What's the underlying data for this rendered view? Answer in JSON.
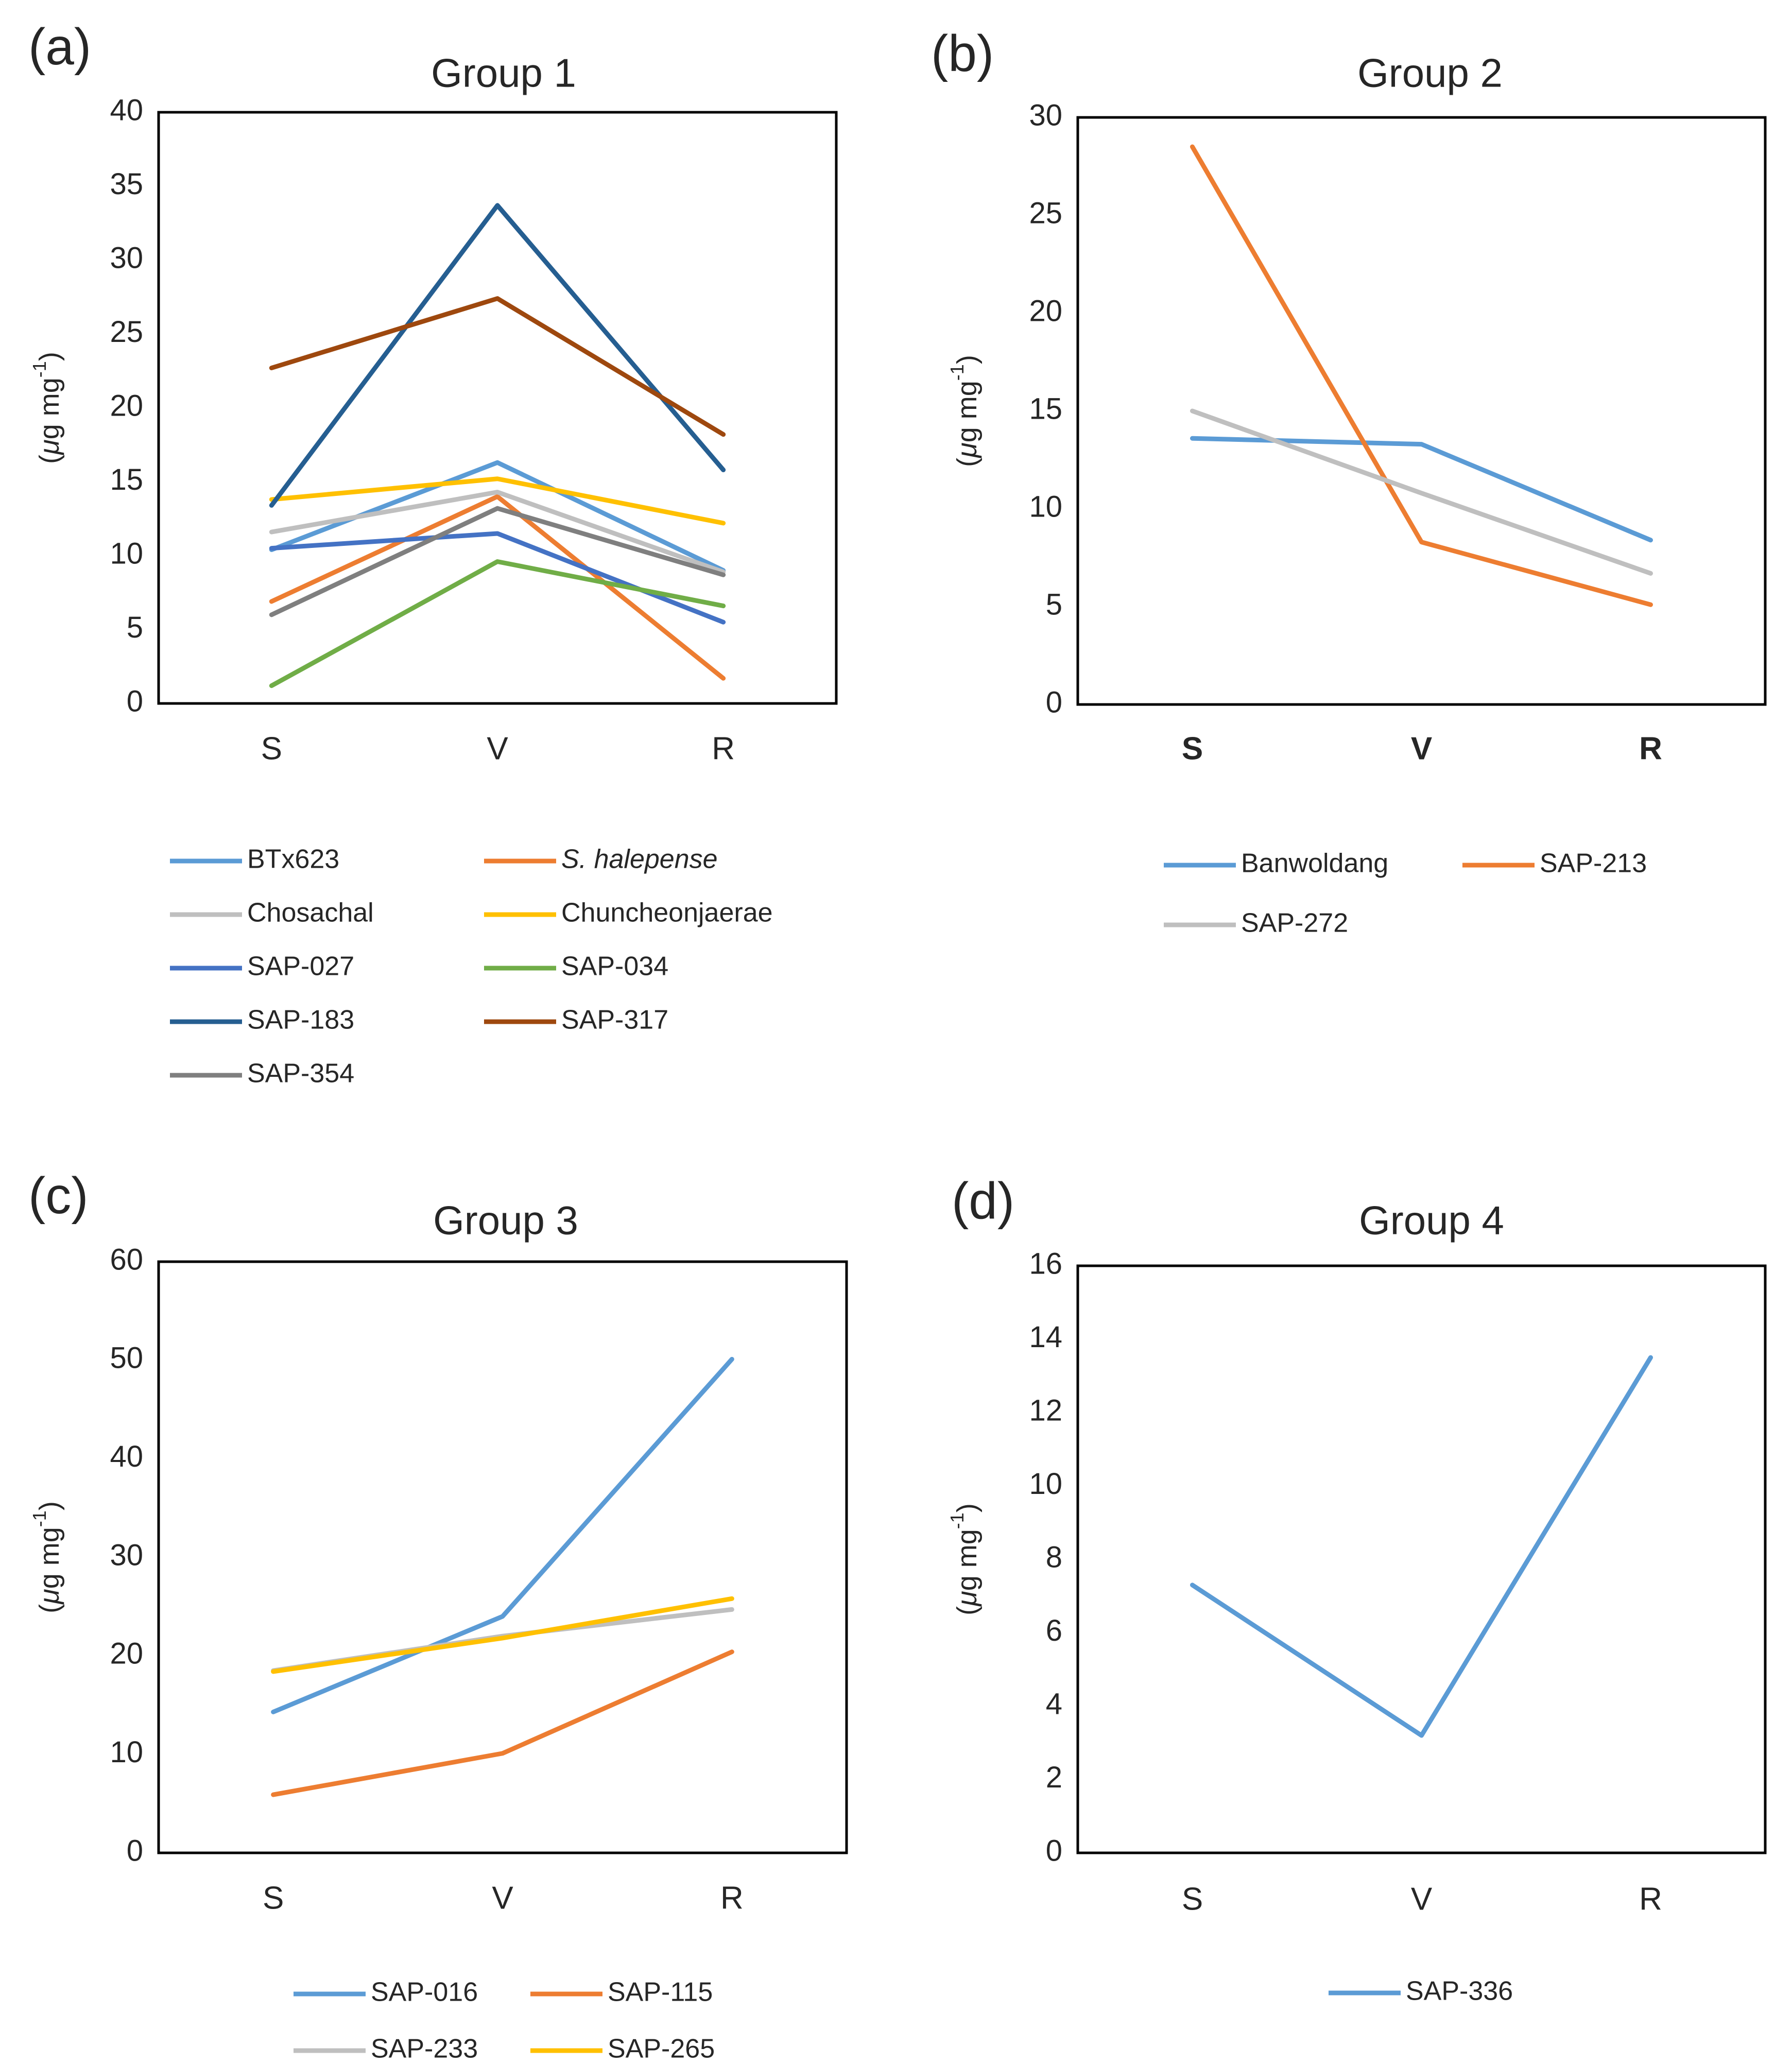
{
  "chart_data": [
    {
      "type": "line",
      "panel_label": "(a)",
      "title": "Group 1",
      "ylabel_prefix": "(",
      "ylabel_mu": "μ",
      "ylabel_unit": "g mg",
      "ylabel_exp": "-1",
      "ylabel_suffix": ")",
      "xlabel": "",
      "categories": [
        "S",
        "V",
        "R"
      ],
      "categories_bold": false,
      "ylim": [
        0,
        40
      ],
      "ytick_step": 5,
      "yticks": [
        "0",
        "5",
        "10",
        "15",
        "20",
        "25",
        "30",
        "35",
        "40"
      ],
      "legend_columns": 2,
      "series": [
        {
          "name": "BTx623",
          "italic": false,
          "color": "#5b9bd5",
          "values": [
            10.4,
            16.3,
            9.0
          ]
        },
        {
          "name": "S. halepense",
          "italic": true,
          "color": "#ed7d31",
          "values": [
            6.9,
            14.0,
            1.7
          ]
        },
        {
          "name": "Chosachal",
          "italic": false,
          "color": "#bfbfbf",
          "values": [
            11.6,
            14.3,
            8.9
          ]
        },
        {
          "name": "Chuncheonjaerae",
          "italic": false,
          "color": "#ffc000",
          "values": [
            13.8,
            15.2,
            12.2
          ]
        },
        {
          "name": "SAP-027",
          "italic": false,
          "color": "#4472c4",
          "values": [
            10.5,
            11.5,
            5.5
          ]
        },
        {
          "name": "SAP-034",
          "italic": false,
          "color": "#70ad47",
          "values": [
            1.2,
            9.6,
            6.6
          ]
        },
        {
          "name": "SAP-183",
          "italic": false,
          "color": "#255e91",
          "values": [
            13.4,
            33.7,
            15.8
          ]
        },
        {
          "name": "SAP-317",
          "italic": false,
          "color": "#9e480e",
          "values": [
            22.7,
            27.4,
            18.2
          ]
        },
        {
          "name": "SAP-354",
          "italic": false,
          "color": "#7f7f7f",
          "values": [
            6.0,
            13.2,
            8.7
          ]
        }
      ]
    },
    {
      "type": "line",
      "panel_label": "(b)",
      "title": "Group 2",
      "ylabel_prefix": "(",
      "ylabel_mu": "μ",
      "ylabel_unit": "g mg",
      "ylabel_exp": "-1",
      "ylabel_suffix": ")",
      "xlabel": "",
      "categories": [
        "S",
        "V",
        "R"
      ],
      "categories_bold": true,
      "ylim": [
        0,
        30
      ],
      "ytick_step": 5,
      "yticks": [
        "0",
        "5",
        "10",
        "15",
        "20",
        "25",
        "30"
      ],
      "legend_columns": 2,
      "series": [
        {
          "name": "Banwoldang",
          "italic": false,
          "color": "#5b9bd5",
          "values": [
            13.6,
            13.3,
            8.4
          ]
        },
        {
          "name": "SAP-213",
          "italic": false,
          "color": "#ed7d31",
          "values": [
            28.5,
            8.3,
            5.1
          ]
        },
        {
          "name": "SAP-272",
          "italic": false,
          "color": "#bfbfbf",
          "values": [
            15.0,
            10.8,
            6.7
          ]
        }
      ]
    },
    {
      "type": "line",
      "panel_label": "(c)",
      "title": "Group 3",
      "ylabel_prefix": "(",
      "ylabel_mu": "μ",
      "ylabel_unit": "g mg",
      "ylabel_exp": "-1",
      "ylabel_suffix": ")",
      "xlabel": "",
      "categories": [
        "S",
        "V",
        "R"
      ],
      "categories_bold": false,
      "ylim": [
        0,
        60
      ],
      "ytick_step": 10,
      "yticks": [
        "0",
        "10",
        "20",
        "30",
        "40",
        "50",
        "60"
      ],
      "legend_columns": 2,
      "series": [
        {
          "name": "SAP-016",
          "italic": false,
          "color": "#5b9bd5",
          "values": [
            14.3,
            24.0,
            50.1
          ]
        },
        {
          "name": "SAP-115",
          "italic": false,
          "color": "#ed7d31",
          "values": [
            5.9,
            10.1,
            20.4
          ]
        },
        {
          "name": "SAP-233",
          "italic": false,
          "color": "#bfbfbf",
          "values": [
            18.5,
            22.0,
            24.7
          ]
        },
        {
          "name": "SAP-265",
          "italic": false,
          "color": "#ffc000",
          "values": [
            18.4,
            21.8,
            25.8
          ]
        }
      ]
    },
    {
      "type": "line",
      "panel_label": "(d)",
      "title": "Group 4",
      "ylabel_prefix": "(",
      "ylabel_mu": "μ",
      "ylabel_unit": "g mg",
      "ylabel_exp": "-1",
      "ylabel_suffix": ")",
      "xlabel": "",
      "categories": [
        "S",
        "V",
        "R"
      ],
      "categories_bold": false,
      "ylim": [
        0,
        16
      ],
      "ytick_step": 2,
      "yticks": [
        "0",
        "2",
        "4",
        "6",
        "8",
        "10",
        "12",
        "14",
        "16"
      ],
      "legend_columns": 1,
      "series": [
        {
          "name": "SAP-336",
          "italic": false,
          "color": "#5b9bd5",
          "values": [
            7.3,
            3.2,
            13.5
          ]
        }
      ]
    }
  ]
}
